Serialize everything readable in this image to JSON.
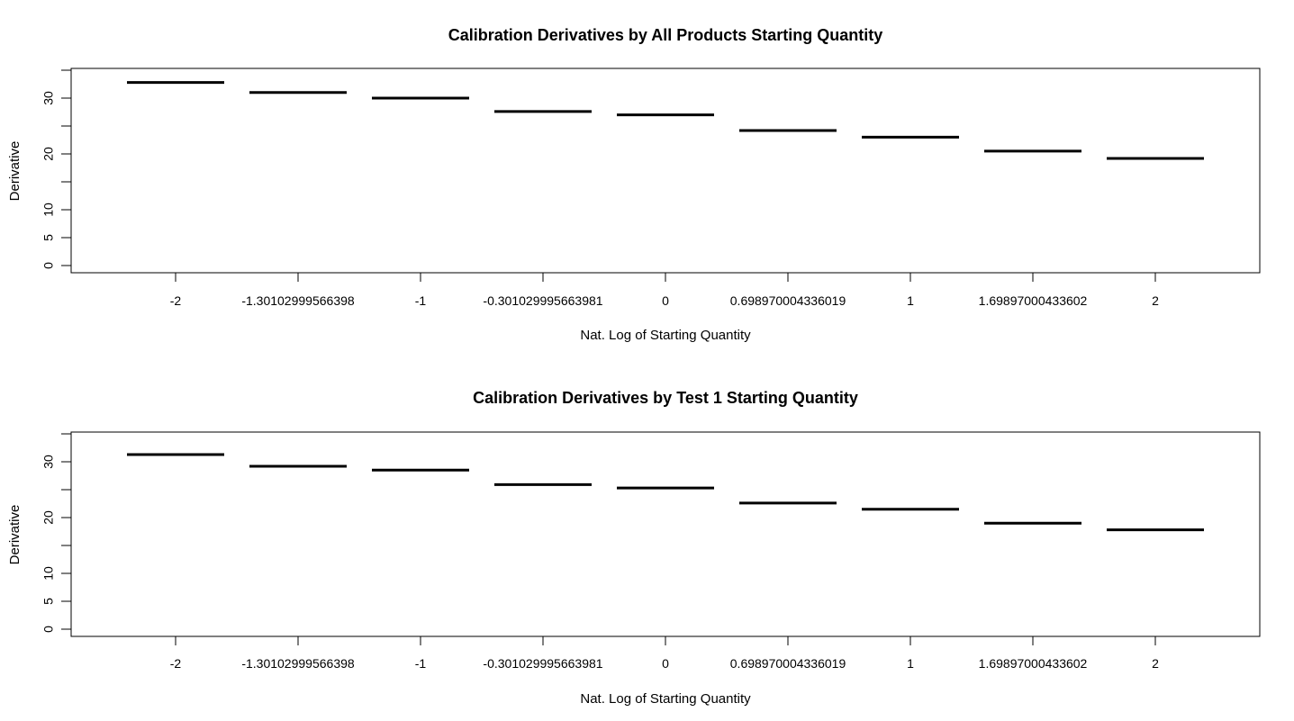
{
  "chart_data": [
    {
      "type": "line",
      "title": "Calibration Derivatives by All Products Starting Quantity",
      "xlabel": "Nat. Log of Starting Quantity",
      "ylabel": "Derivative",
      "categories": [
        "-2",
        "-1.30102999566398",
        "-1",
        "-0.301029995663981",
        "0",
        "0.698970004336019",
        "1",
        "1.69897000433602",
        "2"
      ],
      "values": [
        32.8,
        31.0,
        30.0,
        27.6,
        27.0,
        24.2,
        23.0,
        20.5,
        19.2
      ],
      "yticks": [
        "0",
        "5",
        "10",
        "20",
        "30"
      ],
      "ylim": [
        0,
        33
      ],
      "grid": false
    },
    {
      "type": "line",
      "title": "Calibration Derivatives by Test 1 Starting Quantity",
      "xlabel": "Nat. Log of Starting Quantity",
      "ylabel": "Derivative",
      "categories": [
        "-2",
        "-1.30102999566398",
        "-1",
        "-0.301029995663981",
        "0",
        "0.698970004336019",
        "1",
        "1.69897000433602",
        "2"
      ],
      "values": [
        31.3,
        29.2,
        28.5,
        25.9,
        25.3,
        22.6,
        21.5,
        19.0,
        17.8
      ],
      "yticks": [
        "0",
        "5",
        "10",
        "20",
        "30"
      ],
      "ylim": [
        0,
        33
      ],
      "grid": false
    }
  ]
}
